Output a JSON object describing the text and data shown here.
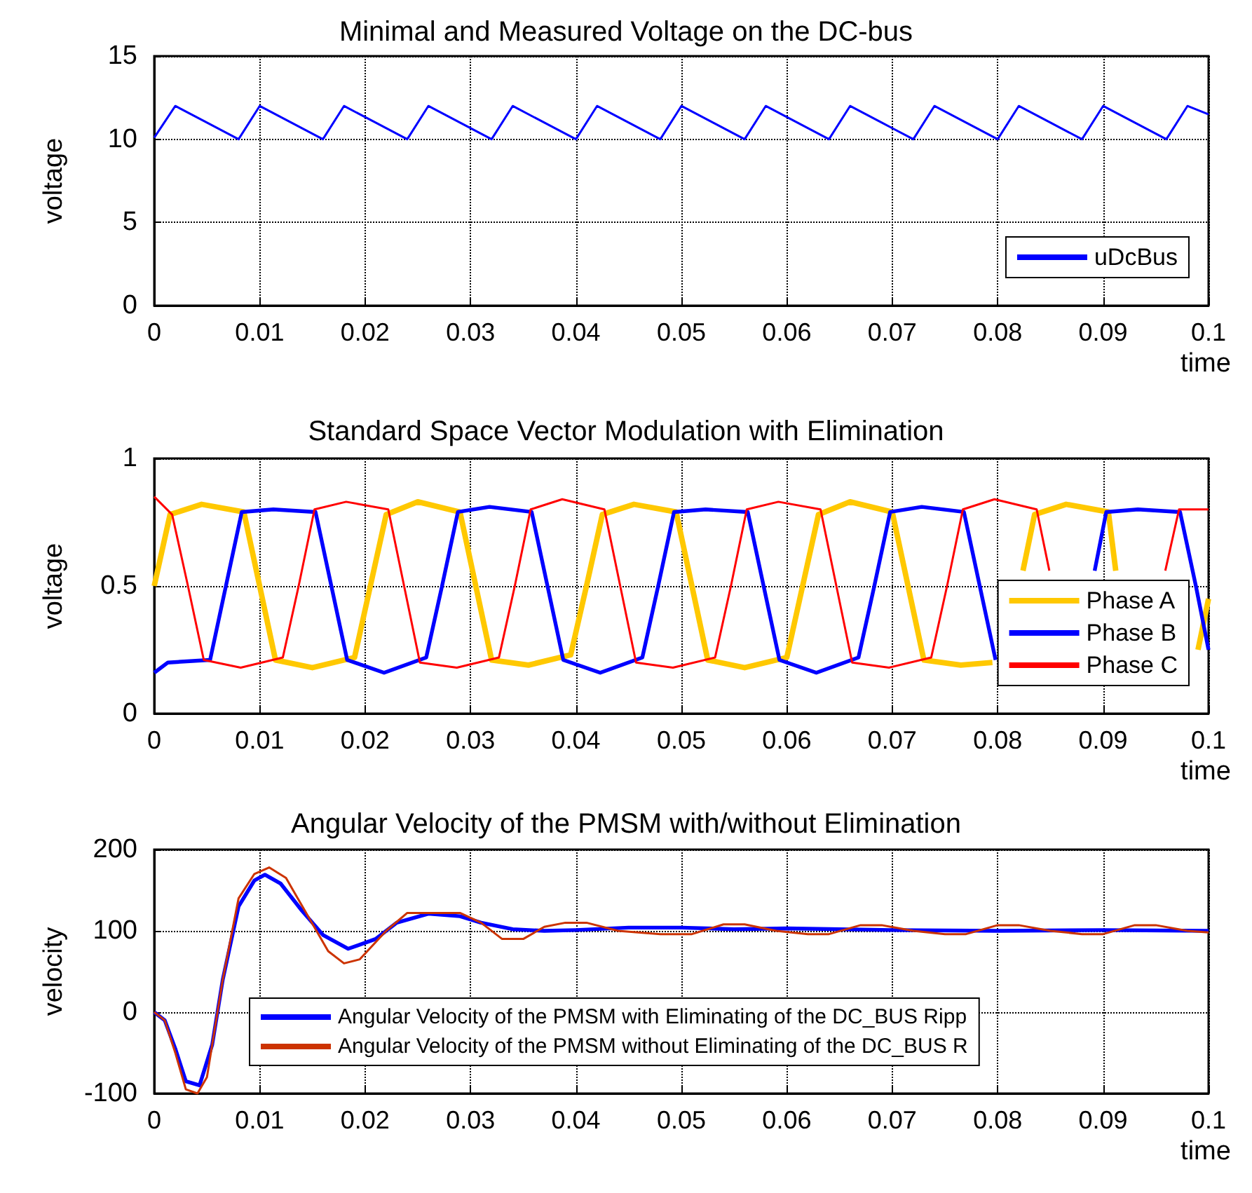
{
  "chart_data": [
    {
      "type": "line",
      "title": "Minimal and Measured Voltage on the DC-bus",
      "xlabel": "time",
      "ylabel": "voltage",
      "xlim": [
        0,
        0.1
      ],
      "xticks": [
        0,
        0.01,
        0.02,
        0.03,
        0.04,
        0.05,
        0.06,
        0.07,
        0.08,
        0.09,
        0.1
      ],
      "ylim": [
        0,
        15
      ],
      "yticks": [
        0,
        5,
        10,
        15
      ],
      "grid": true,
      "legend": "bottom right",
      "series": [
        {
          "name": "uDcBus",
          "color": "#0000ff",
          "x": [
            0,
            0.002,
            0.005,
            0.008,
            0.01,
            0.013,
            0.016,
            0.018,
            0.021,
            0.024,
            0.026,
            0.029,
            0.032,
            0.034,
            0.037,
            0.04,
            0.042,
            0.045,
            0.048,
            0.05,
            0.053,
            0.056,
            0.058,
            0.061,
            0.064,
            0.066,
            0.069,
            0.072,
            0.074,
            0.077,
            0.08,
            0.082,
            0.085,
            0.088,
            0.09,
            0.093,
            0.096,
            0.098,
            0.1
          ],
          "values": [
            10.1,
            12,
            11,
            10,
            12,
            11,
            10,
            12,
            11,
            10,
            12,
            11,
            10,
            12,
            11,
            10,
            12,
            11,
            10,
            12,
            11,
            10,
            12,
            11,
            10,
            12,
            11,
            10,
            12,
            11,
            10,
            12,
            11,
            10,
            12,
            11,
            10,
            12,
            11.5
          ]
        }
      ]
    },
    {
      "type": "line",
      "title": "Standard Space Vector Modulation with Elimination",
      "xlabel": "time",
      "ylabel": "voltage",
      "xlim": [
        0,
        0.1
      ],
      "xticks": [
        0,
        0.01,
        0.02,
        0.03,
        0.04,
        0.05,
        0.06,
        0.07,
        0.08,
        0.09,
        0.1
      ],
      "ylim": [
        0,
        1
      ],
      "yticks": [
        0,
        0.5,
        1
      ],
      "grid": true,
      "legend": "bottom right",
      "series": [
        {
          "name": "Phase A",
          "color": "#ffc800",
          "x": [
            0,
            0.0015,
            0.0045,
            0.0085,
            0.01,
            0.0115,
            0.015,
            0.019,
            0.0205,
            0.022,
            0.025,
            0.029,
            0.0305,
            0.032,
            0.0355,
            0.0395,
            0.041,
            0.0425,
            0.0455,
            0.0495,
            0.051,
            0.0525,
            0.056,
            0.06,
            0.0615,
            0.063,
            0.066,
            0.07,
            0.0715,
            0.073,
            0.0765,
            0.0795,
            0.0815,
            0.0824,
            0.0835,
            0.0865,
            0.0905,
            0.0912,
            0.094,
            0.099,
            0.1
          ],
          "values": [
            0.5,
            0.78,
            0.82,
            0.79,
            0.5,
            0.21,
            0.18,
            0.22,
            0.5,
            0.78,
            0.83,
            0.79,
            0.5,
            0.21,
            0.19,
            0.23,
            0.5,
            0.78,
            0.82,
            0.79,
            0.5,
            0.21,
            0.18,
            0.22,
            0.5,
            0.78,
            0.83,
            0.79,
            0.5,
            0.21,
            0.19,
            0.2,
            null,
            0.56,
            0.78,
            0.82,
            0.79,
            0.56,
            null,
            0.25,
            0.45
          ]
        },
        {
          "name": "Phase B",
          "color": "#0000ff",
          "x": [
            0,
            0.0013,
            0.0053,
            0.0068,
            0.0083,
            0.0113,
            0.0153,
            0.0168,
            0.0183,
            0.0218,
            0.0258,
            0.0273,
            0.0288,
            0.0318,
            0.0358,
            0.0373,
            0.0388,
            0.0423,
            0.0463,
            0.0478,
            0.0493,
            0.0523,
            0.0563,
            0.0578,
            0.0593,
            0.0628,
            0.0668,
            0.0683,
            0.0698,
            0.0728,
            0.0768,
            0.0783,
            0.0798,
            0.085,
            0.0892,
            0.0903,
            0.0933,
            0.0973,
            0.0988,
            0.1
          ],
          "values": [
            0.16,
            0.2,
            0.21,
            0.5,
            0.79,
            0.8,
            0.79,
            0.5,
            0.21,
            0.16,
            0.22,
            0.5,
            0.79,
            0.81,
            0.79,
            0.5,
            0.21,
            0.16,
            0.22,
            0.5,
            0.79,
            0.8,
            0.79,
            0.5,
            0.21,
            0.16,
            0.22,
            0.5,
            0.79,
            0.81,
            0.79,
            0.5,
            0.21,
            null,
            0.56,
            0.79,
            0.8,
            0.79,
            0.5,
            0.25
          ]
        },
        {
          "name": "Phase C",
          "color": "#ff0000",
          "x": [
            0,
            0.0017,
            0.0032,
            0.0047,
            0.0082,
            0.0122,
            0.0137,
            0.0152,
            0.0182,
            0.0222,
            0.0237,
            0.0252,
            0.0287,
            0.0327,
            0.0342,
            0.0357,
            0.0387,
            0.0427,
            0.0442,
            0.0457,
            0.0492,
            0.0532,
            0.0547,
            0.0562,
            0.0592,
            0.0632,
            0.0647,
            0.0662,
            0.0697,
            0.0737,
            0.0752,
            0.0767,
            0.0797,
            0.0837,
            0.0849,
            0.09,
            0.0959,
            0.0972,
            0.1
          ],
          "values": [
            0.85,
            0.78,
            0.5,
            0.21,
            0.18,
            0.22,
            0.5,
            0.8,
            0.83,
            0.8,
            0.5,
            0.2,
            0.18,
            0.22,
            0.5,
            0.8,
            0.84,
            0.8,
            0.5,
            0.2,
            0.18,
            0.22,
            0.5,
            0.8,
            0.83,
            0.8,
            0.5,
            0.2,
            0.18,
            0.22,
            0.5,
            0.8,
            0.84,
            0.8,
            0.56,
            null,
            0.56,
            0.8,
            0.8
          ]
        }
      ]
    },
    {
      "type": "line",
      "title": "Angular Velocity of the PMSM with/without Elimination",
      "xlabel": "time",
      "ylabel": "velocity",
      "xlim": [
        0,
        0.1
      ],
      "xticks": [
        0,
        0.01,
        0.02,
        0.03,
        0.04,
        0.05,
        0.06,
        0.07,
        0.08,
        0.09,
        0.1
      ],
      "ylim": [
        -100,
        200
      ],
      "yticks": [
        -100,
        0,
        100,
        200
      ],
      "grid": true,
      "legend": "bottom",
      "series": [
        {
          "name": "Angular Velocity of the PMSM with Eliminating of the DC_BUS Ripp",
          "color": "#0000ff",
          "x": [
            0,
            0.001,
            0.002,
            0.003,
            0.0043,
            0.0055,
            0.0065,
            0.008,
            0.0095,
            0.0105,
            0.012,
            0.014,
            0.016,
            0.0184,
            0.021,
            0.023,
            0.026,
            0.029,
            0.031,
            0.034,
            0.037,
            0.04,
            0.045,
            0.05,
            0.055,
            0.06,
            0.07,
            0.08,
            0.09,
            0.1
          ],
          "values": [
            0,
            -10,
            -45,
            -85,
            -90,
            -40,
            40,
            130,
            162,
            169,
            158,
            125,
            95,
            78,
            90,
            110,
            121,
            118,
            110,
            102,
            100,
            101,
            104,
            104,
            102,
            103,
            101,
            100,
            101,
            100
          ]
        },
        {
          "name": "Angular Velocity of the PMSM without Eliminating of the DC_BUS R",
          "color": "#cc3300",
          "x": [
            0,
            0.001,
            0.002,
            0.003,
            0.0041,
            0.005,
            0.0065,
            0.008,
            0.0095,
            0.0109,
            0.0125,
            0.0145,
            0.0165,
            0.018,
            0.0195,
            0.022,
            0.024,
            0.029,
            0.031,
            0.033,
            0.035,
            0.037,
            0.039,
            0.041,
            0.044,
            0.048,
            0.051,
            0.054,
            0.056,
            0.059,
            0.062,
            0.064,
            0.067,
            0.069,
            0.072,
            0.075,
            0.077,
            0.08,
            0.082,
            0.085,
            0.088,
            0.09,
            0.093,
            0.095,
            0.098,
            0.1
          ],
          "values": [
            0,
            -10,
            -50,
            -95,
            -100,
            -80,
            40,
            140,
            170,
            178,
            165,
            120,
            75,
            60,
            65,
            100,
            122,
            122,
            110,
            90,
            90,
            105,
            110,
            110,
            100,
            96,
            96,
            108,
            108,
            100,
            96,
            96,
            107,
            107,
            100,
            96,
            96,
            107,
            107,
            100,
            96,
            96,
            107,
            107,
            100,
            98
          ]
        }
      ]
    }
  ]
}
